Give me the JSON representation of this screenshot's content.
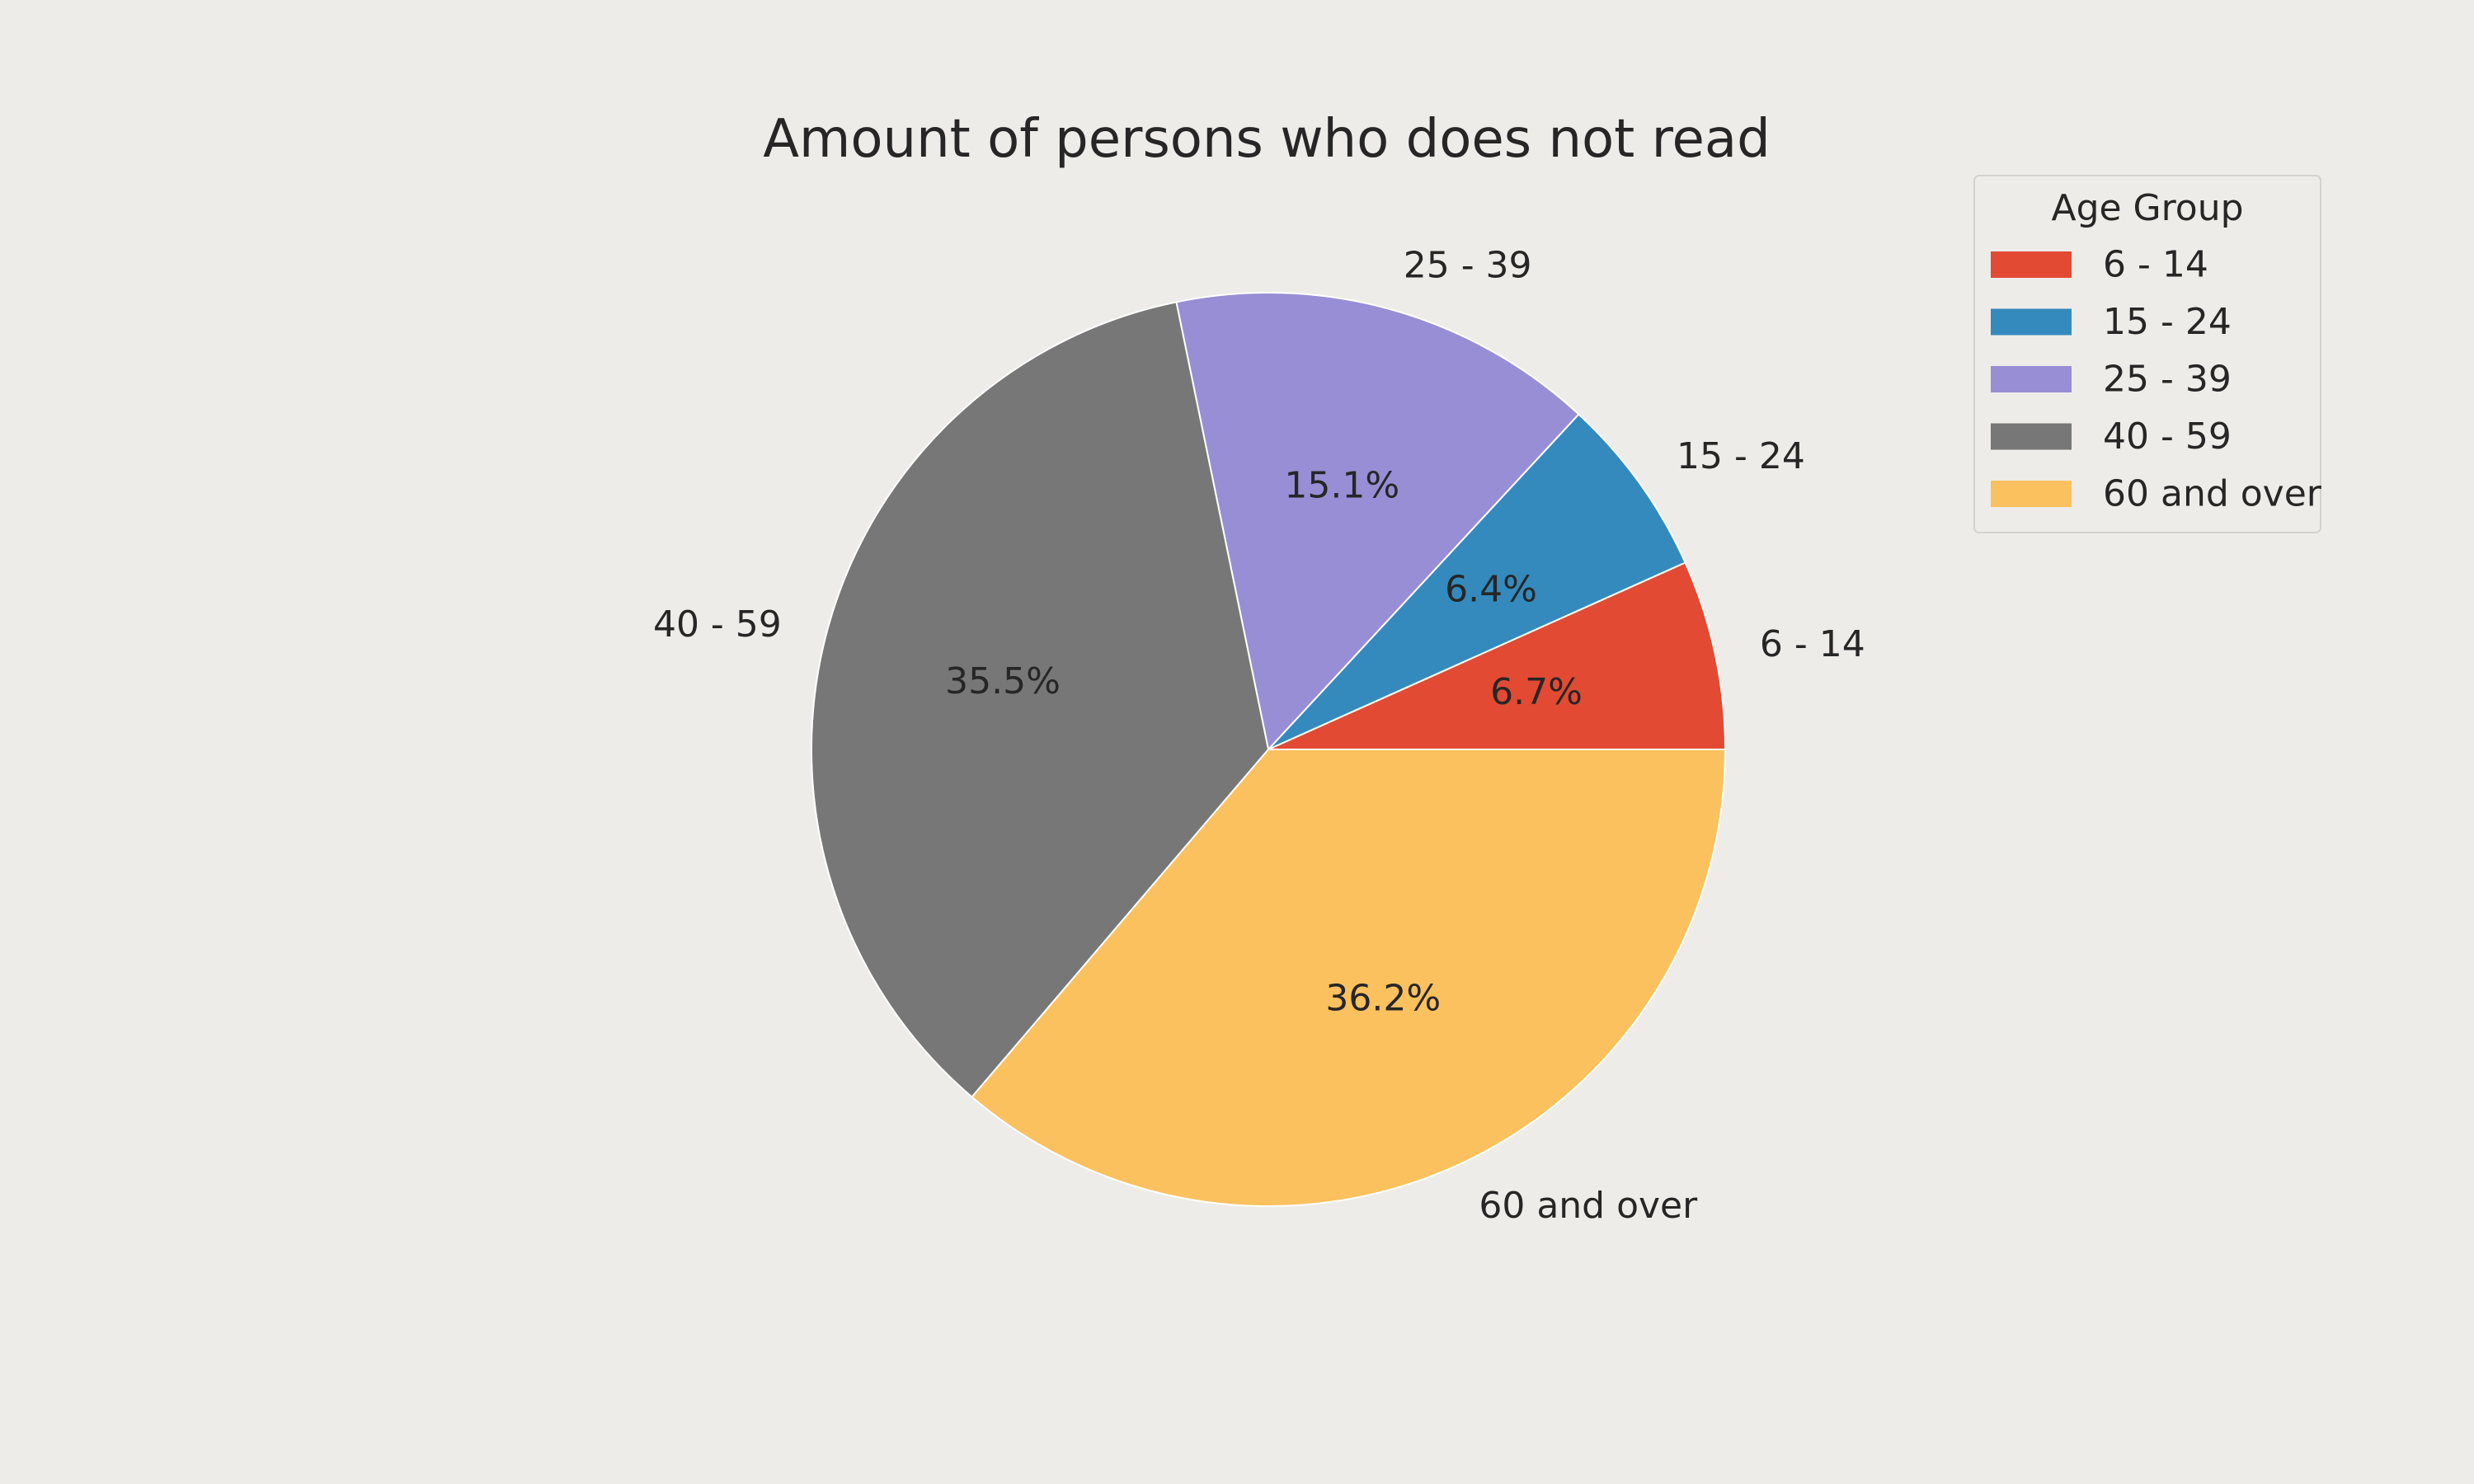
{
  "chart_data": {
    "type": "pie",
    "title": "Amount of persons who does not read",
    "legend": {
      "title": "Age Group",
      "placement": "top-right"
    },
    "slices": [
      {
        "label": "6 - 14",
        "percent": 6.7,
        "display": "6.7%",
        "color": "#e24a33"
      },
      {
        "label": "15 - 24",
        "percent": 6.4,
        "display": "6.4%",
        "color": "#348abd"
      },
      {
        "label": "25 - 39",
        "percent": 15.1,
        "display": "15.1%",
        "color": "#988ed5"
      },
      {
        "label": "40 - 59",
        "percent": 35.5,
        "display": "35.5%",
        "color": "#777777"
      },
      {
        "label": "60 and over",
        "percent": 36.2,
        "display": "36.2%",
        "color": "#fbc15e"
      }
    ],
    "start_angle_deg": 0,
    "direction": "counterclockwise"
  }
}
